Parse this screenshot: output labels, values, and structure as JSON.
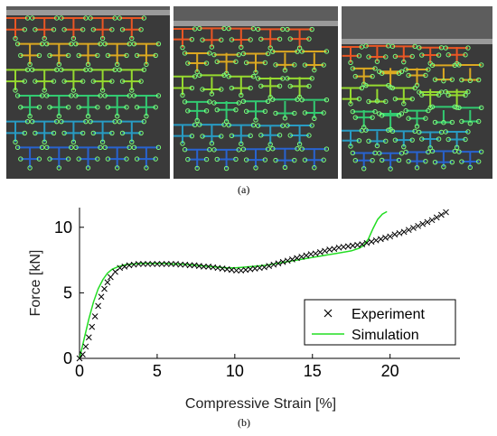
{
  "figure": {
    "captions": {
      "a": "(a)",
      "b": "(b)"
    },
    "panels": [
      {
        "name": "undeformed-lattice"
      },
      {
        "name": "intermediate-deformation"
      },
      {
        "name": "final-deformation"
      }
    ]
  },
  "chart_data": {
    "type": "line",
    "title": "",
    "xlabel": "Compressive Strain [%]",
    "ylabel": "Force [kN]",
    "xlim": [
      0,
      24.5
    ],
    "ylim": [
      0,
      11.5
    ],
    "xticks": [
      0,
      5,
      10,
      15,
      20
    ],
    "yticks": [
      0,
      5,
      10
    ],
    "grid": false,
    "legend_position": "bottom-right",
    "series": [
      {
        "name": "Experiment",
        "style": "markers-x",
        "color": "#000000",
        "x": [
          0,
          0.2,
          0.4,
          0.6,
          0.8,
          1.0,
          1.2,
          1.4,
          1.6,
          1.8,
          2.0,
          2.3,
          2.6,
          2.9,
          3.2,
          3.5,
          3.8,
          4.1,
          4.4,
          4.7,
          5.0,
          5.3,
          5.6,
          5.9,
          6.2,
          6.5,
          6.8,
          7.1,
          7.4,
          7.7,
          8.0,
          8.3,
          8.6,
          8.9,
          9.2,
          9.5,
          9.8,
          10.1,
          10.4,
          10.7,
          11.0,
          11.3,
          11.6,
          11.9,
          12.2,
          12.5,
          12.8,
          13.1,
          13.4,
          13.7,
          14.0,
          14.3,
          14.6,
          14.9,
          15.2,
          15.5,
          15.8,
          16.1,
          16.4,
          16.7,
          17.0,
          17.3,
          17.6,
          17.9,
          18.2,
          18.5,
          18.8,
          19.1,
          19.4,
          19.7,
          20.0,
          20.3,
          20.6,
          20.9,
          21.2,
          21.5,
          21.8,
          22.1,
          22.4,
          22.7,
          23.0,
          23.3,
          23.6
        ],
        "y": [
          0,
          0.3,
          0.9,
          1.6,
          2.4,
          3.2,
          4.0,
          4.7,
          5.3,
          5.8,
          6.2,
          6.6,
          6.9,
          7.0,
          7.1,
          7.15,
          7.2,
          7.2,
          7.2,
          7.2,
          7.2,
          7.2,
          7.2,
          7.2,
          7.2,
          7.15,
          7.15,
          7.1,
          7.1,
          7.05,
          7.0,
          7.0,
          6.95,
          6.9,
          6.85,
          6.8,
          6.75,
          6.7,
          6.7,
          6.75,
          6.8,
          6.85,
          6.9,
          6.95,
          7.05,
          7.15,
          7.25,
          7.35,
          7.45,
          7.55,
          7.65,
          7.75,
          7.85,
          7.95,
          8.0,
          8.1,
          8.2,
          8.3,
          8.35,
          8.45,
          8.5,
          8.55,
          8.6,
          8.65,
          8.7,
          8.8,
          8.9,
          9.0,
          9.1,
          9.2,
          9.3,
          9.45,
          9.55,
          9.65,
          9.8,
          9.95,
          10.1,
          10.25,
          10.4,
          10.55,
          10.75,
          10.95,
          11.15
        ]
      },
      {
        "name": "Simulation",
        "style": "line",
        "color": "#22dd22",
        "x": [
          0,
          0.3,
          0.6,
          0.9,
          1.2,
          1.5,
          1.8,
          2.1,
          2.5,
          3.0,
          3.5,
          4.0,
          4.5,
          5.0,
          5.5,
          6.0,
          6.5,
          7.0,
          7.5,
          8.0,
          8.5,
          9.0,
          9.5,
          10.0,
          10.5,
          11.0,
          11.5,
          12.0,
          12.5,
          13.0,
          13.5,
          14.0,
          14.5,
          15.0,
          15.5,
          16.0,
          16.5,
          17.0,
          17.5,
          18.0,
          18.3,
          18.6,
          18.9,
          19.2,
          19.5,
          19.8
        ],
        "y": [
          0,
          1.5,
          3.0,
          4.3,
          5.3,
          6.0,
          6.5,
          6.8,
          7.0,
          7.15,
          7.2,
          7.25,
          7.25,
          7.25,
          7.25,
          7.2,
          7.2,
          7.15,
          7.1,
          7.05,
          7.0,
          6.95,
          6.9,
          6.9,
          6.95,
          7.0,
          7.05,
          7.1,
          7.2,
          7.3,
          7.4,
          7.5,
          7.6,
          7.7,
          7.8,
          7.9,
          8.0,
          8.1,
          8.2,
          8.4,
          8.6,
          9.1,
          9.9,
          10.6,
          11.0,
          11.2
        ]
      }
    ]
  }
}
